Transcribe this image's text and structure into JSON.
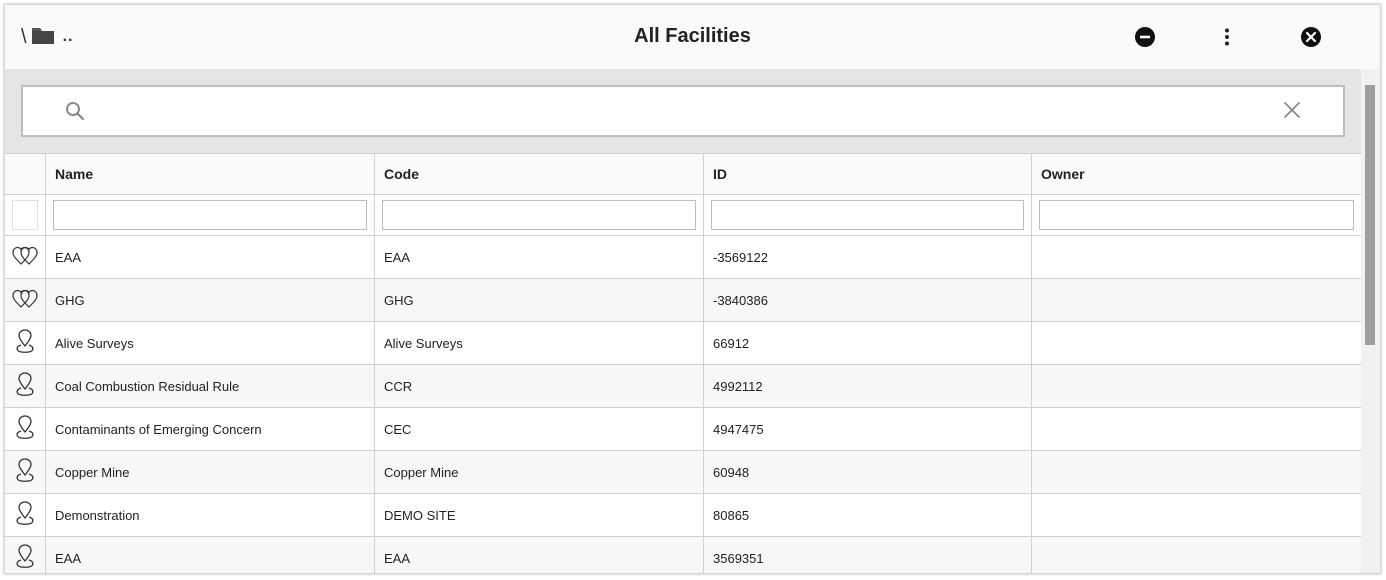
{
  "titlebar": {
    "path_separator": "\\",
    "path_up": "..",
    "title": "All Facilities"
  },
  "search": {
    "value": "",
    "placeholder": ""
  },
  "columns": {
    "name": "Name",
    "code": "Code",
    "id": "ID",
    "owner": "Owner"
  },
  "rows": [
    {
      "icon": "group-icon",
      "name": "EAA",
      "code": "EAA",
      "id": "-3569122",
      "owner": ""
    },
    {
      "icon": "group-icon",
      "name": "GHG",
      "code": "GHG",
      "id": "-3840386",
      "owner": ""
    },
    {
      "icon": "location-pin-icon",
      "name": "Alive Surveys",
      "code": "Alive Surveys",
      "id": "66912",
      "owner": ""
    },
    {
      "icon": "location-pin-icon",
      "name": "Coal Combustion Residual Rule",
      "code": "CCR",
      "id": "4992112",
      "owner": ""
    },
    {
      "icon": "location-pin-icon",
      "name": "Contaminants of Emerging Concern",
      "code": "CEC",
      "id": "4947475",
      "owner": ""
    },
    {
      "icon": "location-pin-icon",
      "name": "Copper Mine",
      "code": "Copper Mine",
      "id": "60948",
      "owner": ""
    },
    {
      "icon": "location-pin-icon",
      "name": "Demonstration",
      "code": "DEMO SITE",
      "id": "80865",
      "owner": ""
    },
    {
      "icon": "location-pin-icon",
      "name": "EAA",
      "code": "EAA",
      "id": "3569351",
      "owner": ""
    }
  ],
  "colors": {
    "header_bg": "#fafafa",
    "search_area_bg": "#e5e5e5",
    "border": "#d0d0d0",
    "icon": "#333333"
  }
}
